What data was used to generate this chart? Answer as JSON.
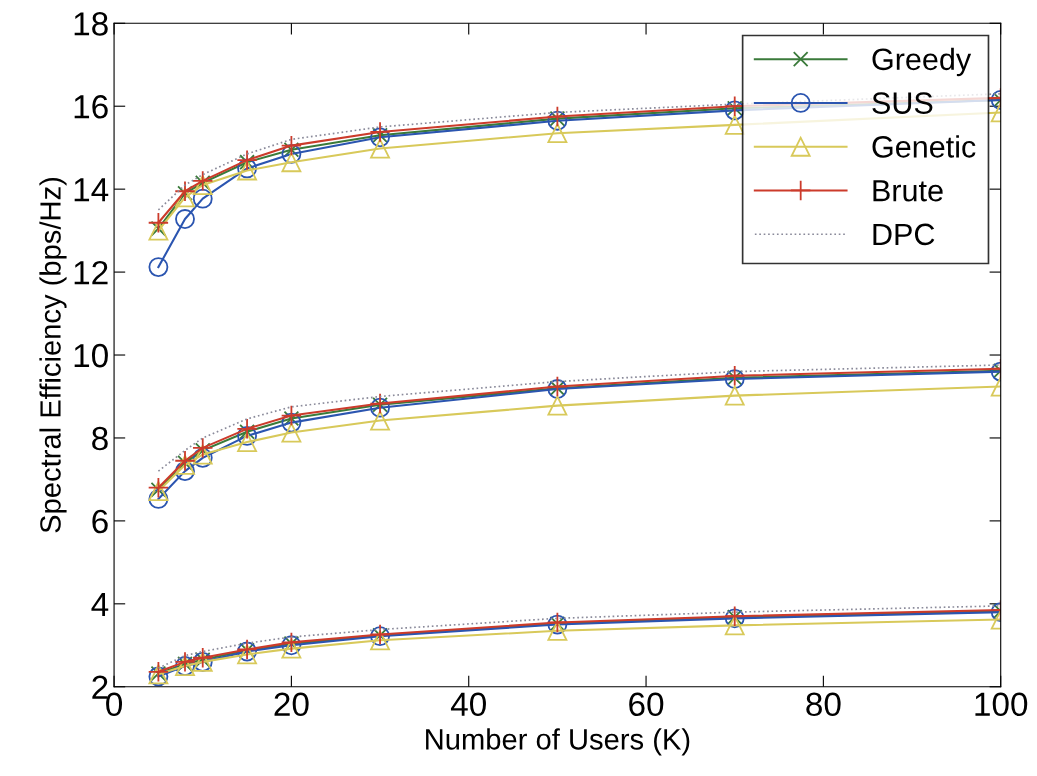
{
  "chart_data": {
    "type": "line",
    "xlabel": "Number of Users (K)",
    "ylabel": "Spectral Efficiency (bps/Hz)",
    "x": [
      5,
      8,
      10,
      15,
      20,
      30,
      50,
      70,
      100
    ],
    "xlim": [
      0,
      100
    ],
    "xticks": [
      0,
      20,
      40,
      60,
      80,
      100
    ],
    "ylim": [
      2,
      18
    ],
    "yticks": [
      2,
      4,
      6,
      8,
      10,
      12,
      14,
      16,
      18
    ],
    "grid": false,
    "legend": "top right",
    "series": [
      {
        "name": "Greedy",
        "color": "#3a7a3a",
        "marker": "cross",
        "line_style": "solid",
        "values": [
          13.05,
          13.9,
          14.15,
          14.65,
          14.95,
          15.3,
          15.7,
          15.95,
          16.15
        ]
      },
      {
        "name": "SUS",
        "color": "#2b55b0",
        "marker": "circle",
        "line_style": "solid",
        "values": [
          12.12,
          13.28,
          13.77,
          14.5,
          14.85,
          15.25,
          15.65,
          15.9,
          16.15
        ]
      },
      {
        "name": "Genetic",
        "color": "#d8c95a",
        "marker": "triangle",
        "line_style": "solid",
        "values": [
          13.0,
          13.8,
          14.1,
          14.45,
          14.65,
          14.98,
          15.35,
          15.55,
          15.85
        ]
      },
      {
        "name": "Brute",
        "color": "#cc3b2b",
        "marker": "plus",
        "line_style": "solid",
        "values": [
          13.19,
          13.95,
          14.2,
          14.7,
          15.05,
          15.38,
          15.75,
          16.0,
          16.2
        ]
      },
      {
        "name": "DPC",
        "color": "#8a8a9a",
        "marker": "none",
        "line_style": "dotted",
        "values": [
          13.5,
          14.1,
          14.35,
          14.85,
          15.2,
          15.5,
          15.85,
          16.05,
          16.3
        ]
      },
      {
        "color": "#3a7a3a",
        "marker": "cross",
        "line_style": "solid",
        "values": [
          6.75,
          7.4,
          7.7,
          8.15,
          8.47,
          8.8,
          9.2,
          9.45,
          9.62
        ]
      },
      {
        "color": "#2b55b0",
        "marker": "circle",
        "line_style": "solid",
        "values": [
          6.53,
          7.2,
          7.52,
          8.05,
          8.37,
          8.73,
          9.18,
          9.42,
          9.6
        ]
      },
      {
        "color": "#d8c95a",
        "marker": "triangle",
        "line_style": "solid",
        "values": [
          6.72,
          7.35,
          7.6,
          7.9,
          8.13,
          8.42,
          8.78,
          9.02,
          9.24
        ]
      },
      {
        "color": "#cc3b2b",
        "marker": "plus",
        "line_style": "solid",
        "values": [
          6.8,
          7.45,
          7.76,
          8.22,
          8.54,
          8.83,
          9.24,
          9.5,
          9.67
        ]
      },
      {
        "color": "#8a8a9a",
        "marker": "none",
        "line_style": "dotted",
        "values": [
          7.2,
          7.7,
          8.0,
          8.46,
          8.75,
          9.0,
          9.36,
          9.6,
          9.76
        ]
      },
      {
        "color": "#3a7a3a",
        "marker": "cross",
        "line_style": "solid",
        "values": [
          2.32,
          2.55,
          2.65,
          2.88,
          3.04,
          3.24,
          3.52,
          3.68,
          3.82
        ]
      },
      {
        "color": "#2b55b0",
        "marker": "circle",
        "line_style": "solid",
        "values": [
          2.25,
          2.5,
          2.6,
          2.85,
          3.0,
          3.22,
          3.5,
          3.65,
          3.8
        ]
      },
      {
        "color": "#d8c95a",
        "marker": "triangle",
        "line_style": "solid",
        "values": [
          2.3,
          2.5,
          2.6,
          2.78,
          2.92,
          3.12,
          3.35,
          3.48,
          3.62
        ]
      },
      {
        "color": "#cc3b2b",
        "marker": "plus",
        "line_style": "solid",
        "values": [
          2.36,
          2.6,
          2.7,
          2.9,
          3.07,
          3.26,
          3.55,
          3.7,
          3.85
        ]
      },
      {
        "color": "#8a8a9a",
        "marker": "none",
        "line_style": "dotted",
        "values": [
          2.45,
          2.75,
          2.85,
          3.05,
          3.2,
          3.38,
          3.65,
          3.8,
          3.95
        ]
      }
    ]
  }
}
